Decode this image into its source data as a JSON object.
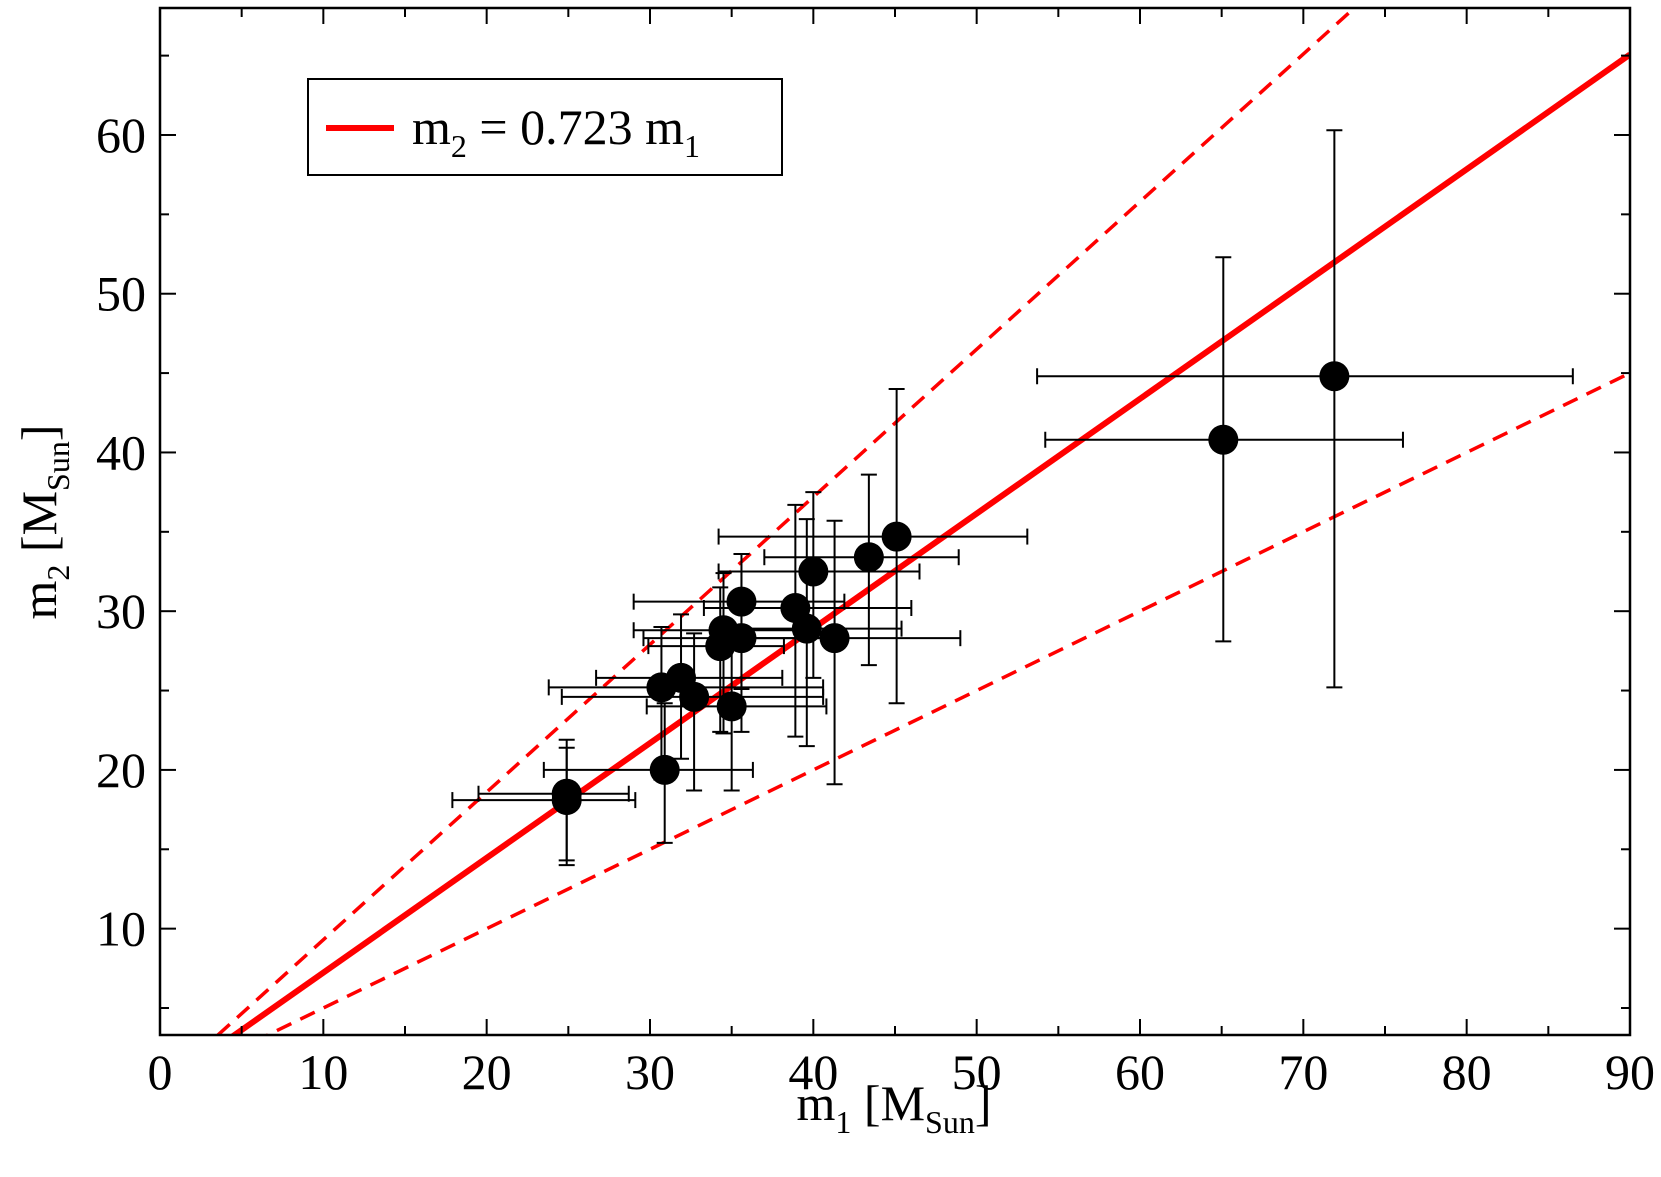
{
  "chart_data": {
    "type": "scatter",
    "xlabel": {
      "base": "m",
      "base_sub": "1",
      "unit_open": " [M",
      "unit_sub": "Sun",
      "unit_close": "]"
    },
    "ylabel": {
      "base": "m",
      "base_sub": "2",
      "unit_open": " [M",
      "unit_sub": "Sun",
      "unit_close": "]"
    },
    "xlim": [
      0,
      90
    ],
    "ylim": [
      3.3,
      68
    ],
    "x_ticks": [
      0,
      10,
      20,
      30,
      40,
      50,
      60,
      70,
      80,
      90
    ],
    "y_ticks": [
      10,
      20,
      30,
      40,
      50,
      60
    ],
    "x_minor_step": 5,
    "y_minor_step": 5,
    "grid": false,
    "legend": {
      "placement": "top-left",
      "entries": [
        {
          "text_base": "m",
          "text_sub1": "2",
          "text_mid": " = 0.723 m",
          "text_sub2": "1",
          "color": "#ff0000",
          "style": "solid"
        }
      ]
    },
    "lines": [
      {
        "label": "m2 = 0.723 m1",
        "slope": 0.723,
        "color": "#ff0000",
        "style": "solid"
      },
      {
        "slope": 0.93,
        "color": "#ff0000",
        "style": "dashed"
      },
      {
        "slope": 0.5,
        "color": "#ff0000",
        "style": "dashed"
      }
    ],
    "points": [
      {
        "x": 24.9,
        "y": 18.5,
        "xerr": [
          5.4,
          3.8
        ],
        "yerr": [
          4.2,
          3.4
        ]
      },
      {
        "x": 24.9,
        "y": 18.1,
        "xerr": [
          7.0,
          4.2
        ],
        "yerr": [
          4.1,
          3.3
        ]
      },
      {
        "x": 30.9,
        "y": 20.0,
        "xerr": [
          7.4,
          5.4
        ],
        "yerr": [
          4.6,
          4.2
        ]
      },
      {
        "x": 30.7,
        "y": 25.2,
        "xerr": [
          6.9,
          9.9
        ],
        "yerr": [
          5.8,
          3.8
        ]
      },
      {
        "x": 31.9,
        "y": 25.8,
        "xerr": [
          5.2,
          6.2
        ],
        "yerr": [
          5.1,
          4.0
        ]
      },
      {
        "x": 32.7,
        "y": 24.6,
        "xerr": [
          8.1,
          7.9
        ],
        "yerr": [
          5.9,
          4.0
        ]
      },
      {
        "x": 34.3,
        "y": 27.8,
        "xerr": [
          4.4,
          3.9
        ],
        "yerr": [
          5.4,
          3.7
        ]
      },
      {
        "x": 34.5,
        "y": 28.8,
        "xerr": [
          5.5,
          5.5
        ],
        "yerr": [
          6.5,
          3.6
        ]
      },
      {
        "x": 35.0,
        "y": 24.0,
        "xerr": [
          5.2,
          5.8
        ],
        "yerr": [
          5.3,
          4.7
        ]
      },
      {
        "x": 35.6,
        "y": 28.3,
        "xerr": [
          6.0,
          5.9
        ],
        "yerr": [
          5.9,
          4.2
        ]
      },
      {
        "x": 35.6,
        "y": 30.6,
        "xerr": [
          6.6,
          6.3
        ],
        "yerr": [
          5.5,
          3.0
        ]
      },
      {
        "x": 38.9,
        "y": 30.2,
        "xerr": [
          5.6,
          7.1
        ],
        "yerr": [
          8.1,
          6.5
        ]
      },
      {
        "x": 39.6,
        "y": 28.9,
        "xerr": [
          4.8,
          5.8
        ],
        "yerr": [
          7.4,
          6.9
        ]
      },
      {
        "x": 40.0,
        "y": 32.5,
        "xerr": [
          5.8,
          6.5
        ],
        "yerr": [
          6.7,
          5.0
        ]
      },
      {
        "x": 41.3,
        "y": 28.3,
        "xerr": [
          6.3,
          7.7
        ],
        "yerr": [
          9.2,
          7.4
        ]
      },
      {
        "x": 43.4,
        "y": 33.4,
        "xerr": [
          6.4,
          5.5
        ],
        "yerr": [
          6.8,
          5.2
        ]
      },
      {
        "x": 45.1,
        "y": 34.7,
        "xerr": [
          10.9,
          8.0
        ],
        "yerr": [
          10.5,
          9.3
        ]
      },
      {
        "x": 65.1,
        "y": 40.8,
        "xerr": [
          10.9,
          11.0
        ],
        "yerr": [
          12.7,
          11.5
        ]
      },
      {
        "x": 71.9,
        "y": 44.8,
        "xerr": [
          18.2,
          14.6
        ],
        "yerr": [
          19.6,
          15.5
        ]
      }
    ]
  }
}
